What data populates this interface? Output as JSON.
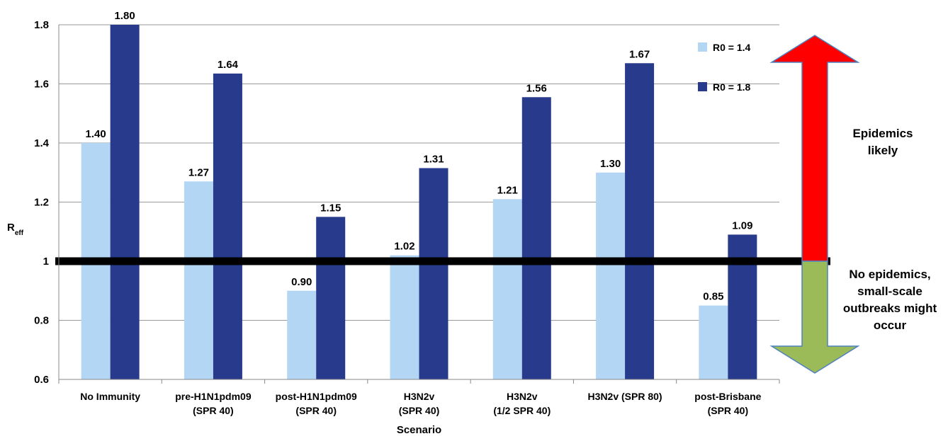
{
  "chart_data": {
    "type": "bar",
    "categories": [
      [
        "No Immunity"
      ],
      [
        "pre-H1N1pdm09",
        "(SPR 40)"
      ],
      [
        "post-H1N1pdm09",
        "(SPR 40)"
      ],
      [
        "H3N2v",
        "(SPR 40)"
      ],
      [
        "H3N2v",
        "(1/2 SPR 40)"
      ],
      [
        "H3N2v (SPR 80)"
      ],
      [
        "post-Brisbane",
        "(SPR 40)"
      ]
    ],
    "series": [
      {
        "name": "R0 = 1.4",
        "color": "#b3d6f5",
        "values": [
          1.4,
          1.27,
          0.9,
          1.02,
          1.21,
          1.3,
          0.85
        ],
        "labels": [
          "1.40",
          "1.27",
          "0.90",
          "1.02",
          "1.21",
          "1.30",
          "0.85"
        ]
      },
      {
        "name": "R0 = 1.8",
        "color": "#283a8c",
        "values": [
          1.8,
          1.635,
          1.15,
          1.315,
          1.555,
          1.67,
          1.09
        ],
        "labels": [
          "1.80",
          "1.64",
          "1.15",
          "1.31",
          "1.56",
          "1.67",
          "1.09"
        ]
      }
    ],
    "xlabel": "Scenario",
    "ylabel_main": "R",
    "ylabel_sub": "eff",
    "ylim": [
      0.6,
      1.8
    ],
    "yticks": [
      0.6,
      0.8,
      1.0,
      1.2,
      1.4,
      1.6,
      1.8
    ],
    "ytick_labels": [
      "0.6",
      "0.8",
      "1",
      "1.2",
      "1.4",
      "1.6",
      "1.8"
    ],
    "grid": true,
    "legend_position": "top-right",
    "threshold": {
      "value": 1.0,
      "color": "#000000"
    },
    "annotations": {
      "up": {
        "lines": [
          "Epidemics",
          "likely"
        ],
        "color": "#ff0000"
      },
      "down": {
        "lines": [
          "No epidemics,",
          "small-scale",
          "outbreaks might",
          "occur"
        ],
        "color": "#9bbb59"
      }
    }
  }
}
